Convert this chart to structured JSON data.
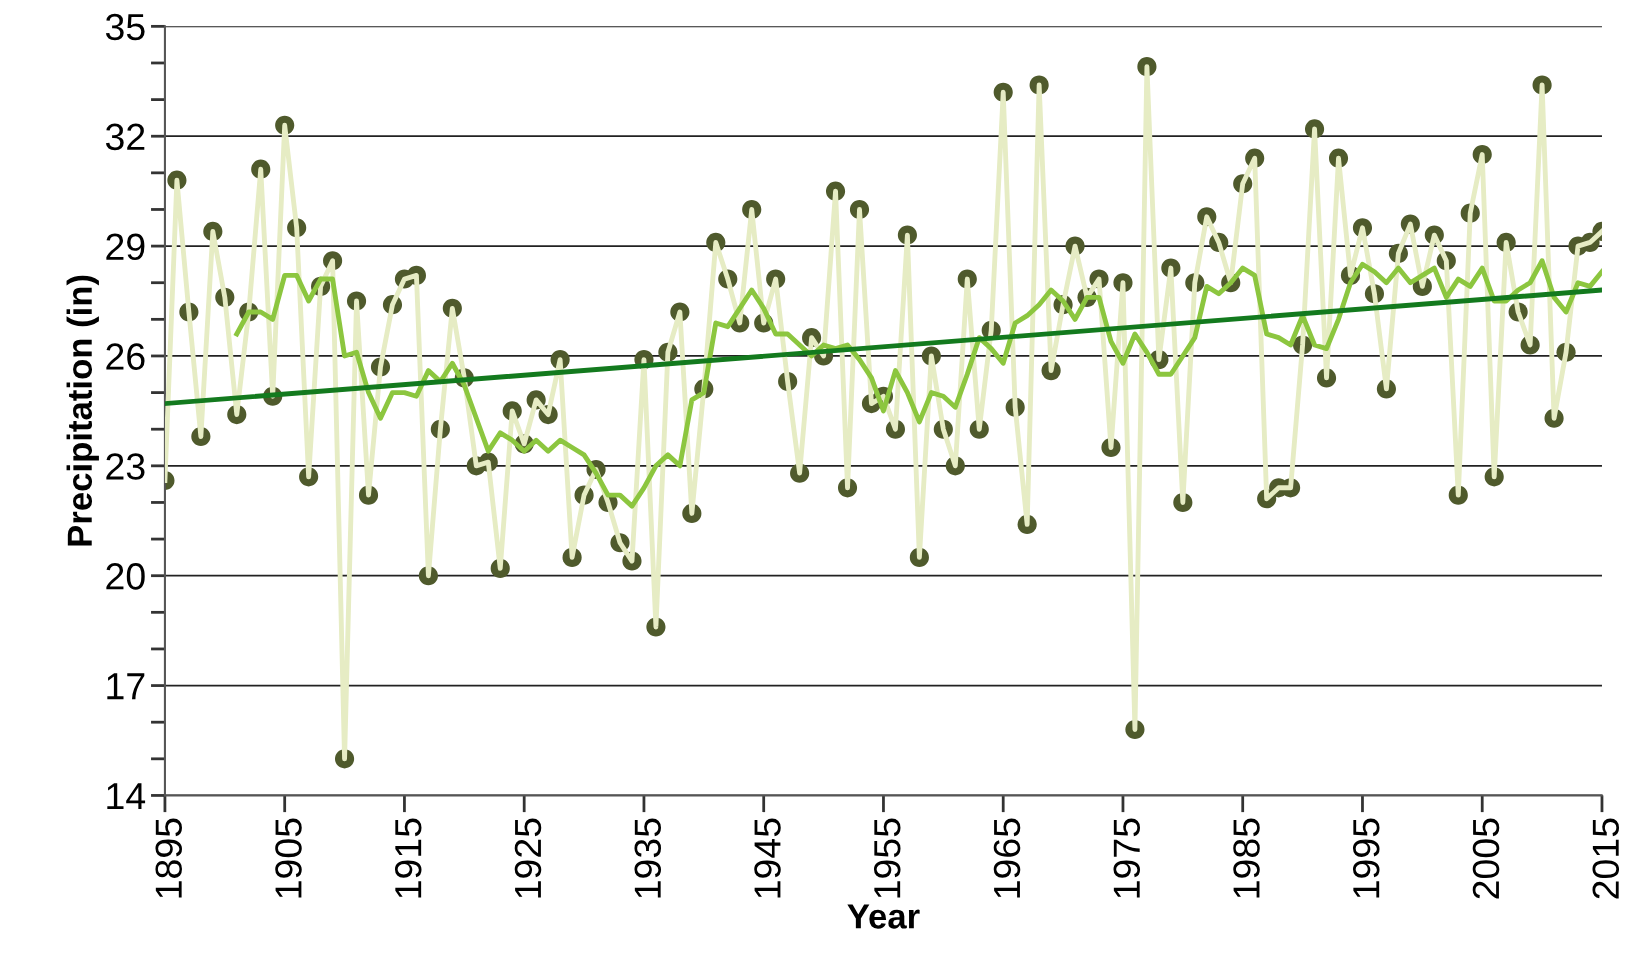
{
  "chart_data": {
    "type": "line",
    "xlabel": "Year",
    "ylabel": "Precipitation (in)",
    "xlim": [
      1895,
      2015
    ],
    "xticks": [
      1895,
      1905,
      1915,
      1925,
      1935,
      1945,
      1955,
      1965,
      1975,
      1985,
      1995,
      2005,
      2015
    ],
    "ylim": [
      14,
      35
    ],
    "yticks": [
      14,
      {
        "value": 15,
        "label": null
      },
      {
        "value": 16,
        "label": null
      },
      17,
      {
        "value": 18,
        "label": null
      },
      {
        "value": 19,
        "label": null
      },
      20,
      {
        "value": 21,
        "label": null
      },
      {
        "value": 22,
        "label": null
      },
      23,
      {
        "value": 24,
        "label": null
      },
      {
        "value": 25,
        "label": null
      },
      26,
      {
        "value": 27,
        "label": null
      },
      {
        "value": 28,
        "label": null
      },
      29,
      {
        "value": 30,
        "label": null
      },
      {
        "value": 31,
        "label": null
      },
      32,
      {
        "value": 33,
        "label": null
      },
      {
        "value": 34,
        "label": null
      },
      35
    ],
    "grid": "y",
    "legend": false,
    "x": [
      1895,
      1896,
      1897,
      1898,
      1899,
      1900,
      1901,
      1902,
      1903,
      1904,
      1905,
      1906,
      1907,
      1908,
      1909,
      1910,
      1911,
      1912,
      1913,
      1914,
      1915,
      1916,
      1917,
      1918,
      1919,
      1920,
      1921,
      1922,
      1923,
      1924,
      1925,
      1926,
      1927,
      1928,
      1929,
      1930,
      1931,
      1932,
      1933,
      1934,
      1935,
      1936,
      1937,
      1938,
      1939,
      1940,
      1941,
      1942,
      1943,
      1944,
      1945,
      1946,
      1947,
      1948,
      1949,
      1950,
      1951,
      1952,
      1953,
      1954,
      1955,
      1956,
      1957,
      1958,
      1959,
      1960,
      1961,
      1962,
      1963,
      1964,
      1965,
      1966,
      1967,
      1968,
      1969,
      1970,
      1971,
      1972,
      1973,
      1974,
      1975,
      1976,
      1977,
      1978,
      1979,
      1980,
      1981,
      1982,
      1983,
      1984,
      1985,
      1986,
      1987,
      1988,
      1989,
      1990,
      1991,
      1992,
      1993,
      1994,
      1995,
      1996,
      1997,
      1998,
      1999,
      2000,
      2001,
      2002,
      2003,
      2004,
      2005,
      2006,
      2007,
      2008,
      2009,
      2010,
      2011,
      2012,
      2013,
      2014,
      2015
    ],
    "series": [
      {
        "type": "line",
        "color": "#e6ecc4",
        "marker": "none",
        "values": [
          22.6,
          30.8,
          27.2,
          23.8,
          29.4,
          27.6,
          24.4,
          27.2,
          31.1,
          24.9,
          32.3,
          29.5,
          22.7,
          27.9,
          28.6,
          15.0,
          27.5,
          22.2,
          25.7,
          27.4,
          28.1,
          28.2,
          20.0,
          24.0,
          27.3,
          25.4,
          23.0,
          23.1,
          20.2,
          24.5,
          23.6,
          24.8,
          24.4,
          25.9,
          20.5,
          22.2,
          22.9,
          22.0,
          20.9,
          20.4,
          25.9,
          18.6,
          26.1,
          27.2,
          21.7,
          25.1,
          29.1,
          28.1,
          26.9,
          30.0,
          26.9,
          28.1,
          25.3,
          22.8,
          26.5,
          26.0,
          30.5,
          22.4,
          30.0,
          24.7,
          24.9,
          24.0,
          29.3,
          20.5,
          26.0,
          24.0,
          23.0,
          28.1,
          24.0,
          26.7,
          33.2,
          24.6,
          21.4,
          33.4,
          25.6,
          27.4,
          29.0,
          27.6,
          28.1,
          23.5,
          28.0,
          15.8,
          33.9,
          25.9,
          28.4,
          22.0,
          28.0,
          29.8,
          29.1,
          28.0,
          30.7,
          31.4,
          22.1,
          22.4,
          22.4,
          26.3,
          32.2,
          25.4,
          31.4,
          28.2,
          29.5,
          27.7,
          25.1,
          28.8,
          29.6,
          27.9,
          29.3,
          28.6,
          22.2,
          29.9,
          31.5,
          22.7,
          29.1,
          27.2,
          26.3,
          33.4,
          24.3,
          26.1,
          29.0,
          29.1,
          29.4
        ]
      },
      {
        "type": "scatter",
        "color": "#4f5a2c",
        "marker": "circle",
        "values": [
          22.6,
          30.8,
          27.2,
          23.8,
          29.4,
          27.6,
          24.4,
          27.2,
          31.1,
          24.9,
          32.3,
          29.5,
          22.7,
          27.9,
          28.6,
          15.0,
          27.5,
          22.2,
          25.7,
          27.4,
          28.1,
          28.2,
          20.0,
          24.0,
          27.3,
          25.4,
          23.0,
          23.1,
          20.2,
          24.5,
          23.6,
          24.8,
          24.4,
          25.9,
          20.5,
          22.2,
          22.9,
          22.0,
          20.9,
          20.4,
          25.9,
          18.6,
          26.1,
          27.2,
          21.7,
          25.1,
          29.1,
          28.1,
          26.9,
          30.0,
          26.9,
          28.1,
          25.3,
          22.8,
          26.5,
          26.0,
          30.5,
          22.4,
          30.0,
          24.7,
          24.9,
          24.0,
          29.3,
          20.5,
          26.0,
          24.0,
          23.0,
          28.1,
          24.0,
          26.7,
          33.2,
          24.6,
          21.4,
          33.4,
          25.6,
          27.4,
          29.0,
          27.6,
          28.1,
          23.5,
          28.0,
          15.8,
          33.9,
          25.9,
          28.4,
          22.0,
          28.0,
          29.8,
          29.1,
          28.0,
          30.7,
          31.4,
          22.1,
          22.4,
          22.4,
          26.3,
          32.2,
          25.4,
          31.4,
          28.2,
          29.5,
          27.7,
          25.1,
          28.8,
          29.6,
          27.9,
          29.3,
          28.6,
          22.2,
          29.9,
          31.5,
          22.7,
          29.1,
          27.2,
          26.3,
          33.4,
          24.3,
          26.1,
          29.0,
          29.1,
          29.4
        ]
      },
      {
        "type": "line",
        "color": "#8cc63f",
        "marker": "none",
        "x": [
          1901,
          1902,
          1903,
          1904,
          1905,
          1906,
          1907,
          1908,
          1909,
          1910,
          1911,
          1912,
          1913,
          1914,
          1915,
          1916,
          1917,
          1918,
          1919,
          1920,
          1921,
          1922,
          1923,
          1924,
          1925,
          1926,
          1927,
          1928,
          1929,
          1930,
          1931,
          1932,
          1933,
          1934,
          1935,
          1936,
          1937,
          1938,
          1939,
          1940,
          1941,
          1942,
          1943,
          1944,
          1945,
          1946,
          1947,
          1948,
          1949,
          1950,
          1951,
          1952,
          1953,
          1954,
          1955,
          1956,
          1957,
          1958,
          1959,
          1960,
          1961,
          1962,
          1963,
          1964,
          1965,
          1966,
          1967,
          1968,
          1969,
          1970,
          1971,
          1972,
          1973,
          1974,
          1975,
          1976,
          1977,
          1978,
          1979,
          1980,
          1981,
          1982,
          1983,
          1984,
          1985,
          1986,
          1987,
          1988,
          1989,
          1990,
          1991,
          1992,
          1993,
          1994,
          1995,
          1996,
          1997,
          1998,
          1999,
          2000,
          2001,
          2002,
          2003,
          2004,
          2005,
          2006,
          2007,
          2008,
          2009,
          2010,
          2011,
          2012,
          2013,
          2014,
          2015
        ],
        "values": [
          26.6,
          27.2,
          27.2,
          27.0,
          28.2,
          28.2,
          27.5,
          28.1,
          28.1,
          26.0,
          26.1,
          25.0,
          24.3,
          25.0,
          25.0,
          24.9,
          25.6,
          25.3,
          25.8,
          25.2,
          24.3,
          23.4,
          23.9,
          23.7,
          23.4,
          23.7,
          23.4,
          23.7,
          23.5,
          23.3,
          22.8,
          22.2,
          22.2,
          21.9,
          22.4,
          23.0,
          23.3,
          23.0,
          24.8,
          25.0,
          26.9,
          26.8,
          27.3,
          27.8,
          27.3,
          26.6,
          26.6,
          26.3,
          26.0,
          26.3,
          26.2,
          26.3,
          25.9,
          25.4,
          24.5,
          25.6,
          25.0,
          24.2,
          25.0,
          24.9,
          24.6,
          25.5,
          26.5,
          26.2,
          25.8,
          26.9,
          27.1,
          27.4,
          27.8,
          27.5,
          27.0,
          27.6,
          27.6,
          26.4,
          25.8,
          26.6,
          26.1,
          25.5,
          25.5,
          26.0,
          26.5,
          27.9,
          27.7,
          28.0,
          28.4,
          28.2,
          26.6,
          26.5,
          26.3,
          27.1,
          26.3,
          26.2,
          27.0,
          28.0,
          28.5,
          28.3,
          28.0,
          28.4,
          28.0,
          28.2,
          28.4,
          27.6,
          28.1,
          27.9,
          28.4,
          27.5,
          27.5,
          27.8,
          28.0,
          28.6,
          27.6,
          27.2,
          28.0,
          27.9,
          28.3
        ]
      },
      {
        "color": "#137a1e",
        "marker": "none",
        "x": [
          1895,
          2015
        ],
        "values": [
          24.7,
          27.8
        ]
      }
    ]
  }
}
